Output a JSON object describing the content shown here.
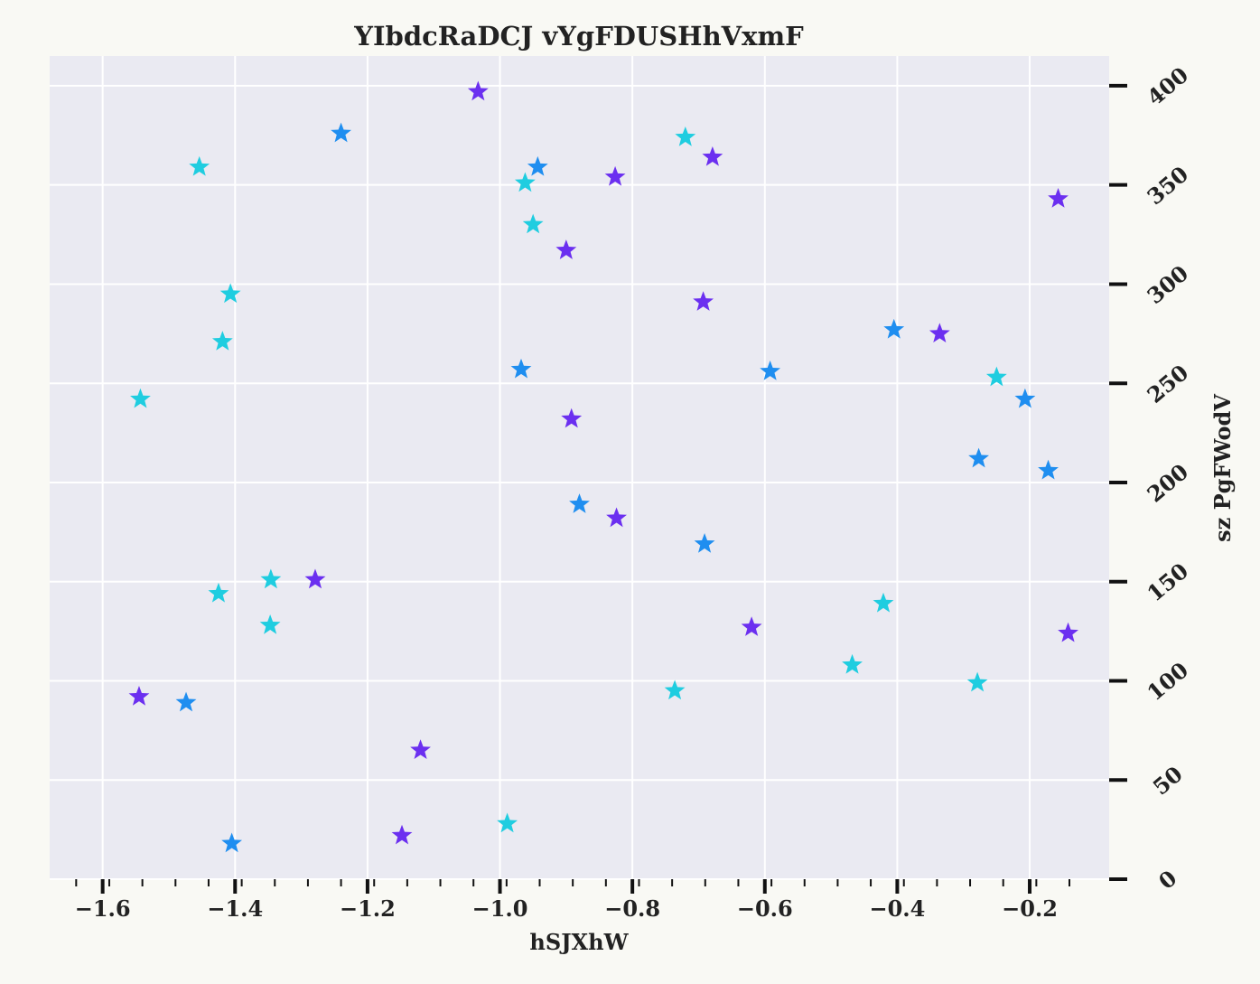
{
  "chart_data": {
    "type": "scatter",
    "title": "YIbdcRaDCJ vYgFDUSHhVxmF",
    "xlabel": "hSJXhW",
    "ylabel": "sz PgFWodV",
    "xlim": [
      -1.68,
      -0.08
    ],
    "ylim": [
      0,
      415
    ],
    "x_ticks": [
      -1.6,
      -1.4,
      -1.2,
      -1.0,
      -0.8,
      -0.6,
      -0.4,
      -0.2
    ],
    "x_tick_labels": [
      "−1.6",
      "−1.4",
      "−1.2",
      "−1.0",
      "−0.8",
      "−0.6",
      "−0.4",
      "−0.2"
    ],
    "y_ticks": [
      0,
      50,
      100,
      150,
      200,
      250,
      300,
      350,
      400
    ],
    "y_tick_labels": [
      "0",
      "50",
      "100",
      "150",
      "200",
      "250",
      "300",
      "350",
      "400"
    ],
    "y_axis_position": "right",
    "grid": true,
    "marker": "star",
    "colors": {
      "background": "#f9f9f4",
      "plot_area": "#eaeaf2",
      "grid": "#ffffff",
      "purple": "#6b2ff0",
      "blue": "#1f8ef0",
      "cyan": "#1fcde0"
    },
    "points": [
      {
        "x": -1.033,
        "y": 397,
        "color": "purple"
      },
      {
        "x": -0.679,
        "y": 364,
        "color": "purple"
      },
      {
        "x": -0.826,
        "y": 354,
        "color": "purple"
      },
      {
        "x": -0.157,
        "y": 343,
        "color": "purple"
      },
      {
        "x": -0.9,
        "y": 317,
        "color": "purple"
      },
      {
        "x": -0.693,
        "y": 291,
        "color": "purple"
      },
      {
        "x": -0.336,
        "y": 275,
        "color": "purple"
      },
      {
        "x": -0.892,
        "y": 232,
        "color": "purple"
      },
      {
        "x": -0.824,
        "y": 182,
        "color": "purple"
      },
      {
        "x": -1.279,
        "y": 151,
        "color": "purple"
      },
      {
        "x": -0.62,
        "y": 127,
        "color": "purple"
      },
      {
        "x": -0.142,
        "y": 124,
        "color": "purple"
      },
      {
        "x": -1.545,
        "y": 92,
        "color": "purple"
      },
      {
        "x": -1.12,
        "y": 65,
        "color": "purple"
      },
      {
        "x": -1.148,
        "y": 22,
        "color": "purple"
      },
      {
        "x": -1.24,
        "y": 376,
        "color": "blue"
      },
      {
        "x": -0.943,
        "y": 359,
        "color": "blue"
      },
      {
        "x": -0.405,
        "y": 277,
        "color": "blue"
      },
      {
        "x": -0.968,
        "y": 257,
        "color": "blue"
      },
      {
        "x": -0.592,
        "y": 256,
        "color": "blue"
      },
      {
        "x": -0.207,
        "y": 242,
        "color": "blue"
      },
      {
        "x": -0.277,
        "y": 212,
        "color": "blue"
      },
      {
        "x": -0.172,
        "y": 206,
        "color": "blue"
      },
      {
        "x": -0.88,
        "y": 189,
        "color": "blue"
      },
      {
        "x": -0.691,
        "y": 169,
        "color": "blue"
      },
      {
        "x": -1.474,
        "y": 89,
        "color": "blue"
      },
      {
        "x": -1.405,
        "y": 18,
        "color": "blue"
      },
      {
        "x": -1.454,
        "y": 359,
        "color": "cyan"
      },
      {
        "x": -0.72,
        "y": 374,
        "color": "cyan"
      },
      {
        "x": -0.962,
        "y": 351,
        "color": "cyan"
      },
      {
        "x": -0.95,
        "y": 330,
        "color": "cyan"
      },
      {
        "x": -1.407,
        "y": 295,
        "color": "cyan"
      },
      {
        "x": -1.419,
        "y": 271,
        "color": "cyan"
      },
      {
        "x": -1.543,
        "y": 242,
        "color": "cyan"
      },
      {
        "x": -0.25,
        "y": 253,
        "color": "cyan"
      },
      {
        "x": -1.346,
        "y": 151,
        "color": "cyan"
      },
      {
        "x": -1.425,
        "y": 144,
        "color": "cyan"
      },
      {
        "x": -0.421,
        "y": 139,
        "color": "cyan"
      },
      {
        "x": -1.347,
        "y": 128,
        "color": "cyan"
      },
      {
        "x": -0.468,
        "y": 108,
        "color": "cyan"
      },
      {
        "x": -0.279,
        "y": 99,
        "color": "cyan"
      },
      {
        "x": -0.736,
        "y": 95,
        "color": "cyan"
      },
      {
        "x": -0.989,
        "y": 28,
        "color": "cyan"
      }
    ]
  }
}
